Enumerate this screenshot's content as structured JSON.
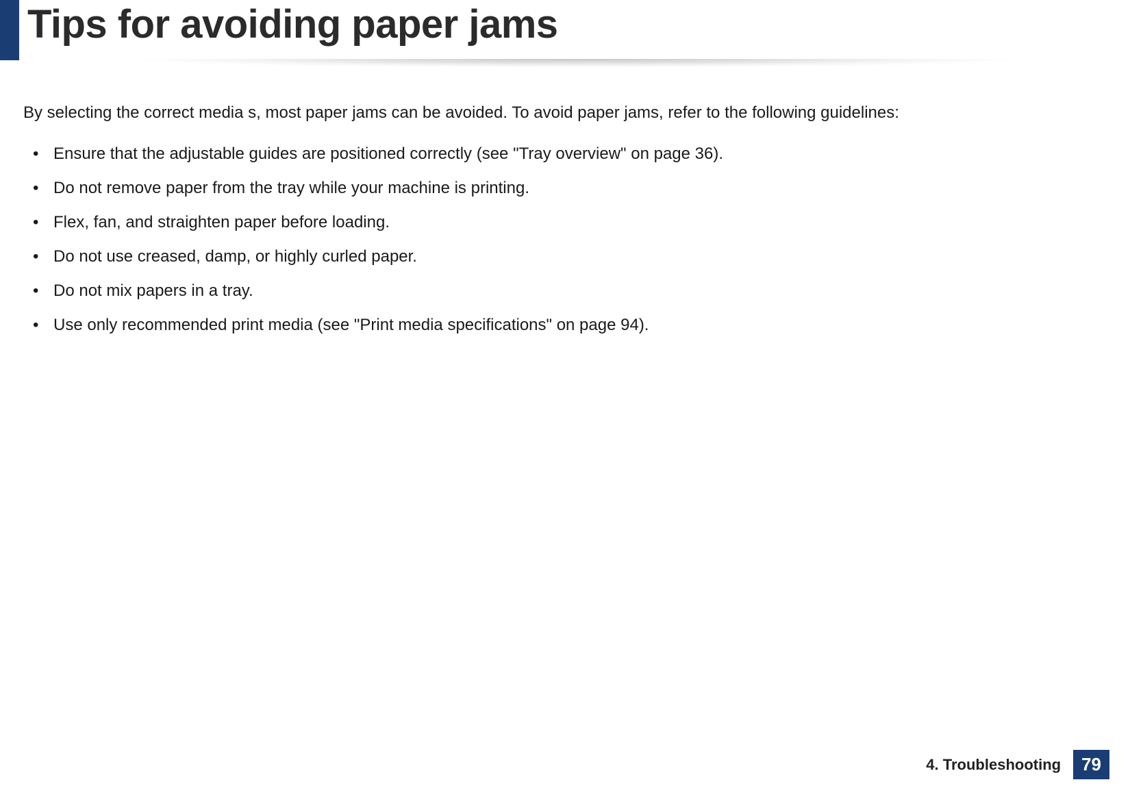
{
  "colors": {
    "accent": "#1a3e73",
    "page_bg": "#ffffff",
    "text": "#1a1a1a",
    "footer_page_bg": "#1a3e73",
    "footer_page_text": "#ffffff"
  },
  "header": {
    "title": "Tips for avoiding paper jams"
  },
  "body": {
    "intro": "By selecting the correct media s, most paper jams can be avoided. To avoid paper jams, refer to the following guidelines:",
    "tips": [
      "Ensure that the adjustable guides are positioned correctly (see \"Tray overview\" on page 36).",
      "Do not remove paper from the tray while your machine is printing.",
      "Flex, fan, and straighten paper before loading.",
      "Do not use creased, damp, or highly curled paper.",
      "Do not mix papers in a tray.",
      "Use only recommended print media (see \"Print media specifications\" on page 94)."
    ]
  },
  "footer": {
    "section": "4.  Troubleshooting",
    "page": "79"
  }
}
